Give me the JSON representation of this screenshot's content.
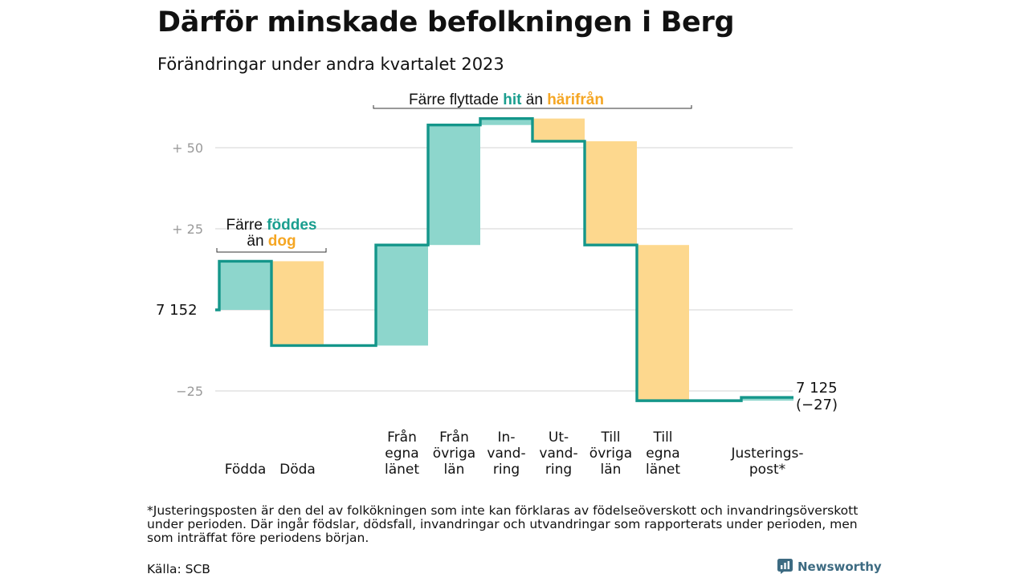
{
  "chart_data": {
    "type": "waterfall",
    "title": "Därför minskade befolkningen i Berg",
    "subtitle": "Förändringar under andra kvartalet 2023",
    "start_value": 7152,
    "end_value": 7125,
    "start_label": "7  152",
    "end_label_value": "7 125",
    "end_label_change": "(−27)",
    "ylim": [
      -28,
      61
    ],
    "y_ticks": [
      {
        "value": 50,
        "label": "+  50"
      },
      {
        "value": 25,
        "label": "+  25"
      },
      {
        "value": -25,
        "label": "−25"
      }
    ],
    "grid": true,
    "colors": {
      "increase": "#8dd6cc",
      "decrease": "#fdd88e",
      "line": "#14968a",
      "grid": "#dcdcdc",
      "teal_text": "#1a9e8f",
      "orange_text": "#f5a623"
    },
    "steps": [
      {
        "label_lines": [
          "Födda"
        ],
        "change": 15
      },
      {
        "label_lines": [
          "Döda"
        ],
        "change": -26
      },
      {
        "label_lines": [],
        "change": 0
      },
      {
        "label_lines": [
          "Från",
          "egna",
          "länet"
        ],
        "change": 31
      },
      {
        "label_lines": [
          "Från",
          "övriga",
          "län"
        ],
        "change": 37
      },
      {
        "label_lines": [
          "In-",
          "vand-",
          "ring"
        ],
        "change": 2
      },
      {
        "label_lines": [
          "Ut-",
          "vand-",
          "ring"
        ],
        "change": -7
      },
      {
        "label_lines": [
          "Till",
          "övriga",
          "län"
        ],
        "change": -32
      },
      {
        "label_lines": [
          "Till",
          "egna",
          "länet"
        ],
        "change": -48
      },
      {
        "label_lines": [],
        "change": 0
      },
      {
        "label_lines": [
          "Justerings-",
          "post*"
        ],
        "change": 1
      }
    ],
    "annotations": {
      "births": {
        "line1": "Färre",
        "line1_hl": "föddes",
        "line2": "än",
        "line2_hl": "dog"
      },
      "moves": {
        "pre": "Färre flyttade",
        "hl1": "hit",
        "mid": "än",
        "hl2": "härifrån"
      }
    }
  },
  "footnote": "*Justeringsposten är den del av folkökningen som inte kan förklaras av födelseöverskott och invandringsöverskott under perioden. Där ingår födslar, dödsfall, invandringar och utvandringar som rapporterats under perioden, men som inträffat före periodens början.",
  "source": "Källa: SCB",
  "brand": {
    "name": "Newsworthy",
    "icon": "newsworthy-logo-icon"
  }
}
